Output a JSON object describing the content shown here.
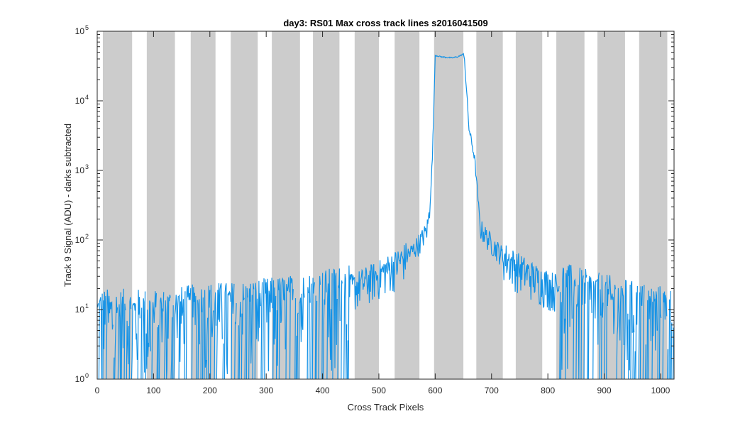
{
  "chart_data": {
    "type": "line",
    "title": "day3: RS01  Max cross track lines  s2016041509",
    "xlabel": "Cross Track Pixels",
    "ylabel": "Track 9 Signal (ADU) - darks subtracted",
    "xlim": [
      0,
      1024
    ],
    "ylim": [
      1,
      100000
    ],
    "yscale": "log",
    "grid": false,
    "legend": "none",
    "x_ticks": [
      0,
      100,
      200,
      300,
      400,
      500,
      600,
      700,
      800,
      900,
      1000
    ],
    "x_tick_labels": [
      "0",
      "100",
      "200",
      "300",
      "400",
      "500",
      "600",
      "700",
      "800",
      "900",
      "1000"
    ],
    "y_ticks": [
      1,
      10,
      100,
      1000,
      10000,
      100000
    ],
    "y_tick_base": "10",
    "y_tick_exponents": [
      "0",
      "1",
      "2",
      "3",
      "4",
      "5"
    ],
    "shaded_bands": [
      [
        10,
        62
      ],
      [
        88,
        138
      ],
      [
        166,
        210
      ],
      [
        237,
        285
      ],
      [
        310,
        360
      ],
      [
        383,
        430
      ],
      [
        457,
        500
      ],
      [
        528,
        572
      ],
      [
        598,
        650
      ],
      [
        673,
        720
      ],
      [
        743,
        790
      ],
      [
        815,
        865
      ],
      [
        888,
        937
      ],
      [
        962,
        1012
      ]
    ],
    "band_color": "#cccccc",
    "series": [
      {
        "color": "#1492e6",
        "profile_x": [
          0,
          40,
          80,
          120,
          160,
          200,
          240,
          280,
          320,
          360,
          400,
          430,
          460,
          500,
          530,
          560,
          575,
          585,
          590,
          595,
          600,
          610,
          620,
          630,
          640,
          650,
          652,
          660,
          670,
          675,
          680,
          700,
          720,
          750,
          780,
          820,
          870,
          920,
          960,
          1000,
          1024
        ],
        "profile_y": [
          8,
          8,
          8,
          8,
          9,
          10,
          10,
          11,
          12,
          13,
          15,
          17,
          22,
          32,
          45,
          70,
          100,
          140,
          250,
          1500,
          45000,
          43000,
          42000,
          41500,
          43000,
          47000,
          40000,
          4000,
          1500,
          500,
          150,
          90,
          60,
          40,
          28,
          20,
          15,
          12,
          10,
          9,
          8
        ]
      }
    ]
  }
}
